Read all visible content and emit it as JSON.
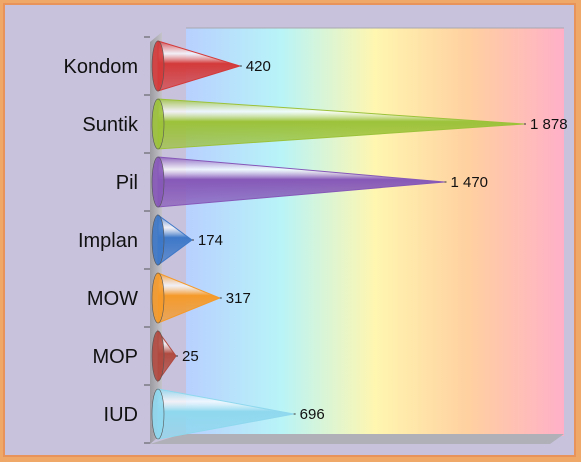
{
  "chart_data": {
    "type": "bar",
    "orientation": "horizontal",
    "bar_shape": "cone",
    "title": "",
    "xlabel": "",
    "ylabel": "",
    "categories": [
      "Kondom",
      "Suntik",
      "Pil",
      "Implan",
      "MOW",
      "MOP",
      "IUD"
    ],
    "values": [
      420,
      1878,
      1470,
      174,
      317,
      25,
      696
    ],
    "value_labels": [
      "420",
      "1 878",
      "1 470",
      "174",
      "317",
      "25",
      "696"
    ],
    "xlim": [
      0,
      1878
    ],
    "grid": false,
    "legend": "none",
    "colors": [
      "#d43a3a",
      "#9cc23a",
      "#8658b8",
      "#3d78c8",
      "#f59a2a",
      "#b04a40",
      "#8fd8ee"
    ],
    "background_gradient": [
      "#b8d0ff",
      "#b8f4f8",
      "#fff6b0",
      "#ffd0a0",
      "#ffb0c8"
    ]
  }
}
